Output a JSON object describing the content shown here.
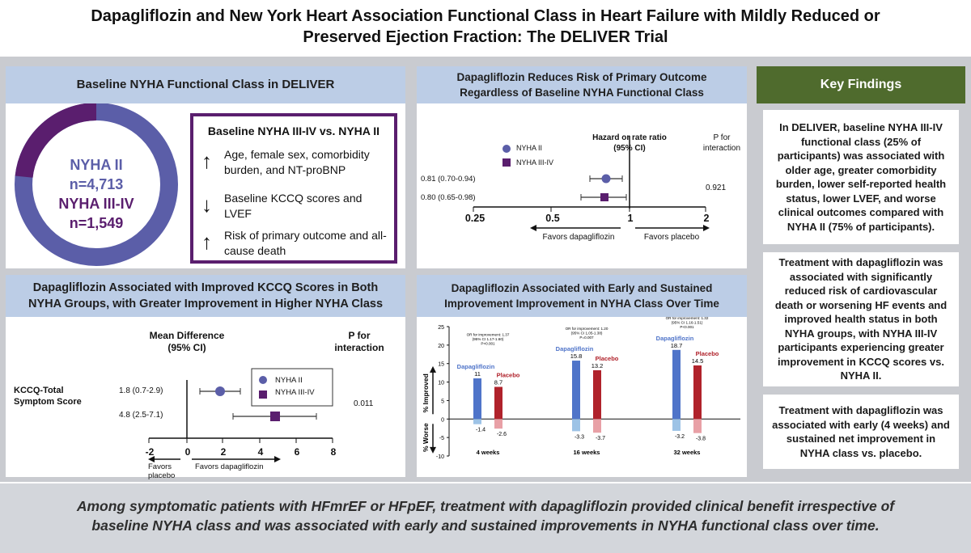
{
  "title": {
    "line1": "Dapagliflozin and New York Heart Association Functional Class in Heart Failure with Mildly Reduced or",
    "line2": "Preserved Ejection Fraction: The DELIVER Trial"
  },
  "colors": {
    "nyha2": "#5b5ea8",
    "nyha34": "#5a1e6e",
    "dapa": "#4f74c9",
    "placebo": "#b0222b",
    "key_findings": "#4f6b2d",
    "header_blue": "#bccde6"
  },
  "baseline": {
    "header": "Baseline NYHA Functional Class in DELIVER",
    "donut_label_1": "NYHA II",
    "donut_n_1": "n=4,713",
    "donut_label_2": "NYHA III-IV",
    "donut_n_2": "n=1,549",
    "box_title": "Baseline NYHA III-IV vs. NYHA II",
    "items": [
      {
        "arrow": "↑",
        "text": "Age, female sex, comorbidity burden, and NT-proBNP"
      },
      {
        "arrow": "↓",
        "text": "Baseline KCCQ scores and LVEF"
      },
      {
        "arrow": "↑",
        "text": "Risk of primary outcome and all-cause death"
      }
    ]
  },
  "primary": {
    "header": "Dapagliflozin Reduces Risk of Primary Outcome Regardless of Baseline NYHA Functional Class",
    "legend": [
      "NYHA II",
      "NYHA III-IV"
    ],
    "col_head": "Hazard or rate ratio (95% CI)",
    "p_head": "P for interaction",
    "p_value": "0.921",
    "rows": [
      "0.81 (0.70-0.94)",
      "0.80 (0.65-0.98)"
    ],
    "ticks": [
      "0.25",
      "0.5",
      "1",
      "2"
    ],
    "favors_left": "Favors dapagliflozin",
    "favors_right": "Favors placebo"
  },
  "kccq": {
    "header": "Dapagliflozin Associated with Improved KCCQ Scores in Both NYHA Groups, with Greater Improvement in Higher NYHA Class",
    "col_head": "Mean Difference (95% CI)",
    "p_head": "P for interaction",
    "p_value": "0.011",
    "row_label": "KCCQ-Total Symptom Score",
    "rows": [
      "1.8 (0.7-2.9)",
      "4.8 (2.5-7.1)"
    ],
    "legend": [
      "NYHA II",
      "NYHA III-IV"
    ],
    "ticks": [
      "-2",
      "0",
      "2",
      "4",
      "6",
      "8"
    ],
    "favors_left": "Favors placebo",
    "favors_right": "Favors dapagliflozin"
  },
  "nyha_change": {
    "header": "Dapagliflozin Associated with Early and Sustained Improvement Improvement in NYHA Class Over Time",
    "ylabel_top": "% Improved",
    "ylabel_bottom": "% Worse",
    "dapa_label": "Dapagliflozin",
    "placebo_label": "Placebo",
    "or_notes": [
      "OR for improvement: 1.37 (95% CI 1.17-1.60) P<0.001",
      "OR for improvement: 1.20 (95% CI 1.05-1.38) P=0.007",
      "OR for improvement: 1.32 (95% CI 1.16-1.51) P<0.001"
    ]
  },
  "chart_data": {
    "type": "bar",
    "categories": [
      "4 weeks",
      "16 weeks",
      "32 weeks"
    ],
    "series": [
      {
        "name": "Dapagliflozin",
        "values": [
          11,
          15.8,
          18.7
        ],
        "worse": [
          -1.4,
          -3.3,
          -3.2
        ]
      },
      {
        "name": "Placebo",
        "values": [
          8.7,
          13.2,
          14.5
        ],
        "worse": [
          -2.6,
          -3.7,
          -3.8
        ]
      }
    ],
    "yticks": [
      "25",
      "20",
      "15",
      "10",
      "5",
      "0",
      "-5",
      "-10"
    ],
    "ylim": [
      -10,
      25
    ]
  },
  "key_findings": {
    "header": "Key Findings",
    "items": [
      "In DELIVER, baseline NYHA III-IV functional class (25% of participants) was associated with older age, greater comorbidity burden, lower self-reported health status, lower LVEF, and worse clinical outcomes compared with NYHA II (75% of participants).",
      "Treatment with dapagliflozin was associated with significantly reduced risk of cardiovascular death or worsening HF events and improved health status in both NYHA groups, with NYHA III-IV participants experiencing greater improvement in KCCQ scores vs. NYHA II.",
      "Treatment with dapagliflozin was associated with early (4 weeks) and sustained net improvement in NYHA class vs. placebo."
    ]
  },
  "footer": {
    "line1": "Among symptomatic patients with HFmrEF or HFpEF, treatment with dapagliflozin provided clinical benefit irrespective of",
    "line2": "baseline NYHA class and was associated with early and sustained improvements in NYHA functional class over time."
  }
}
